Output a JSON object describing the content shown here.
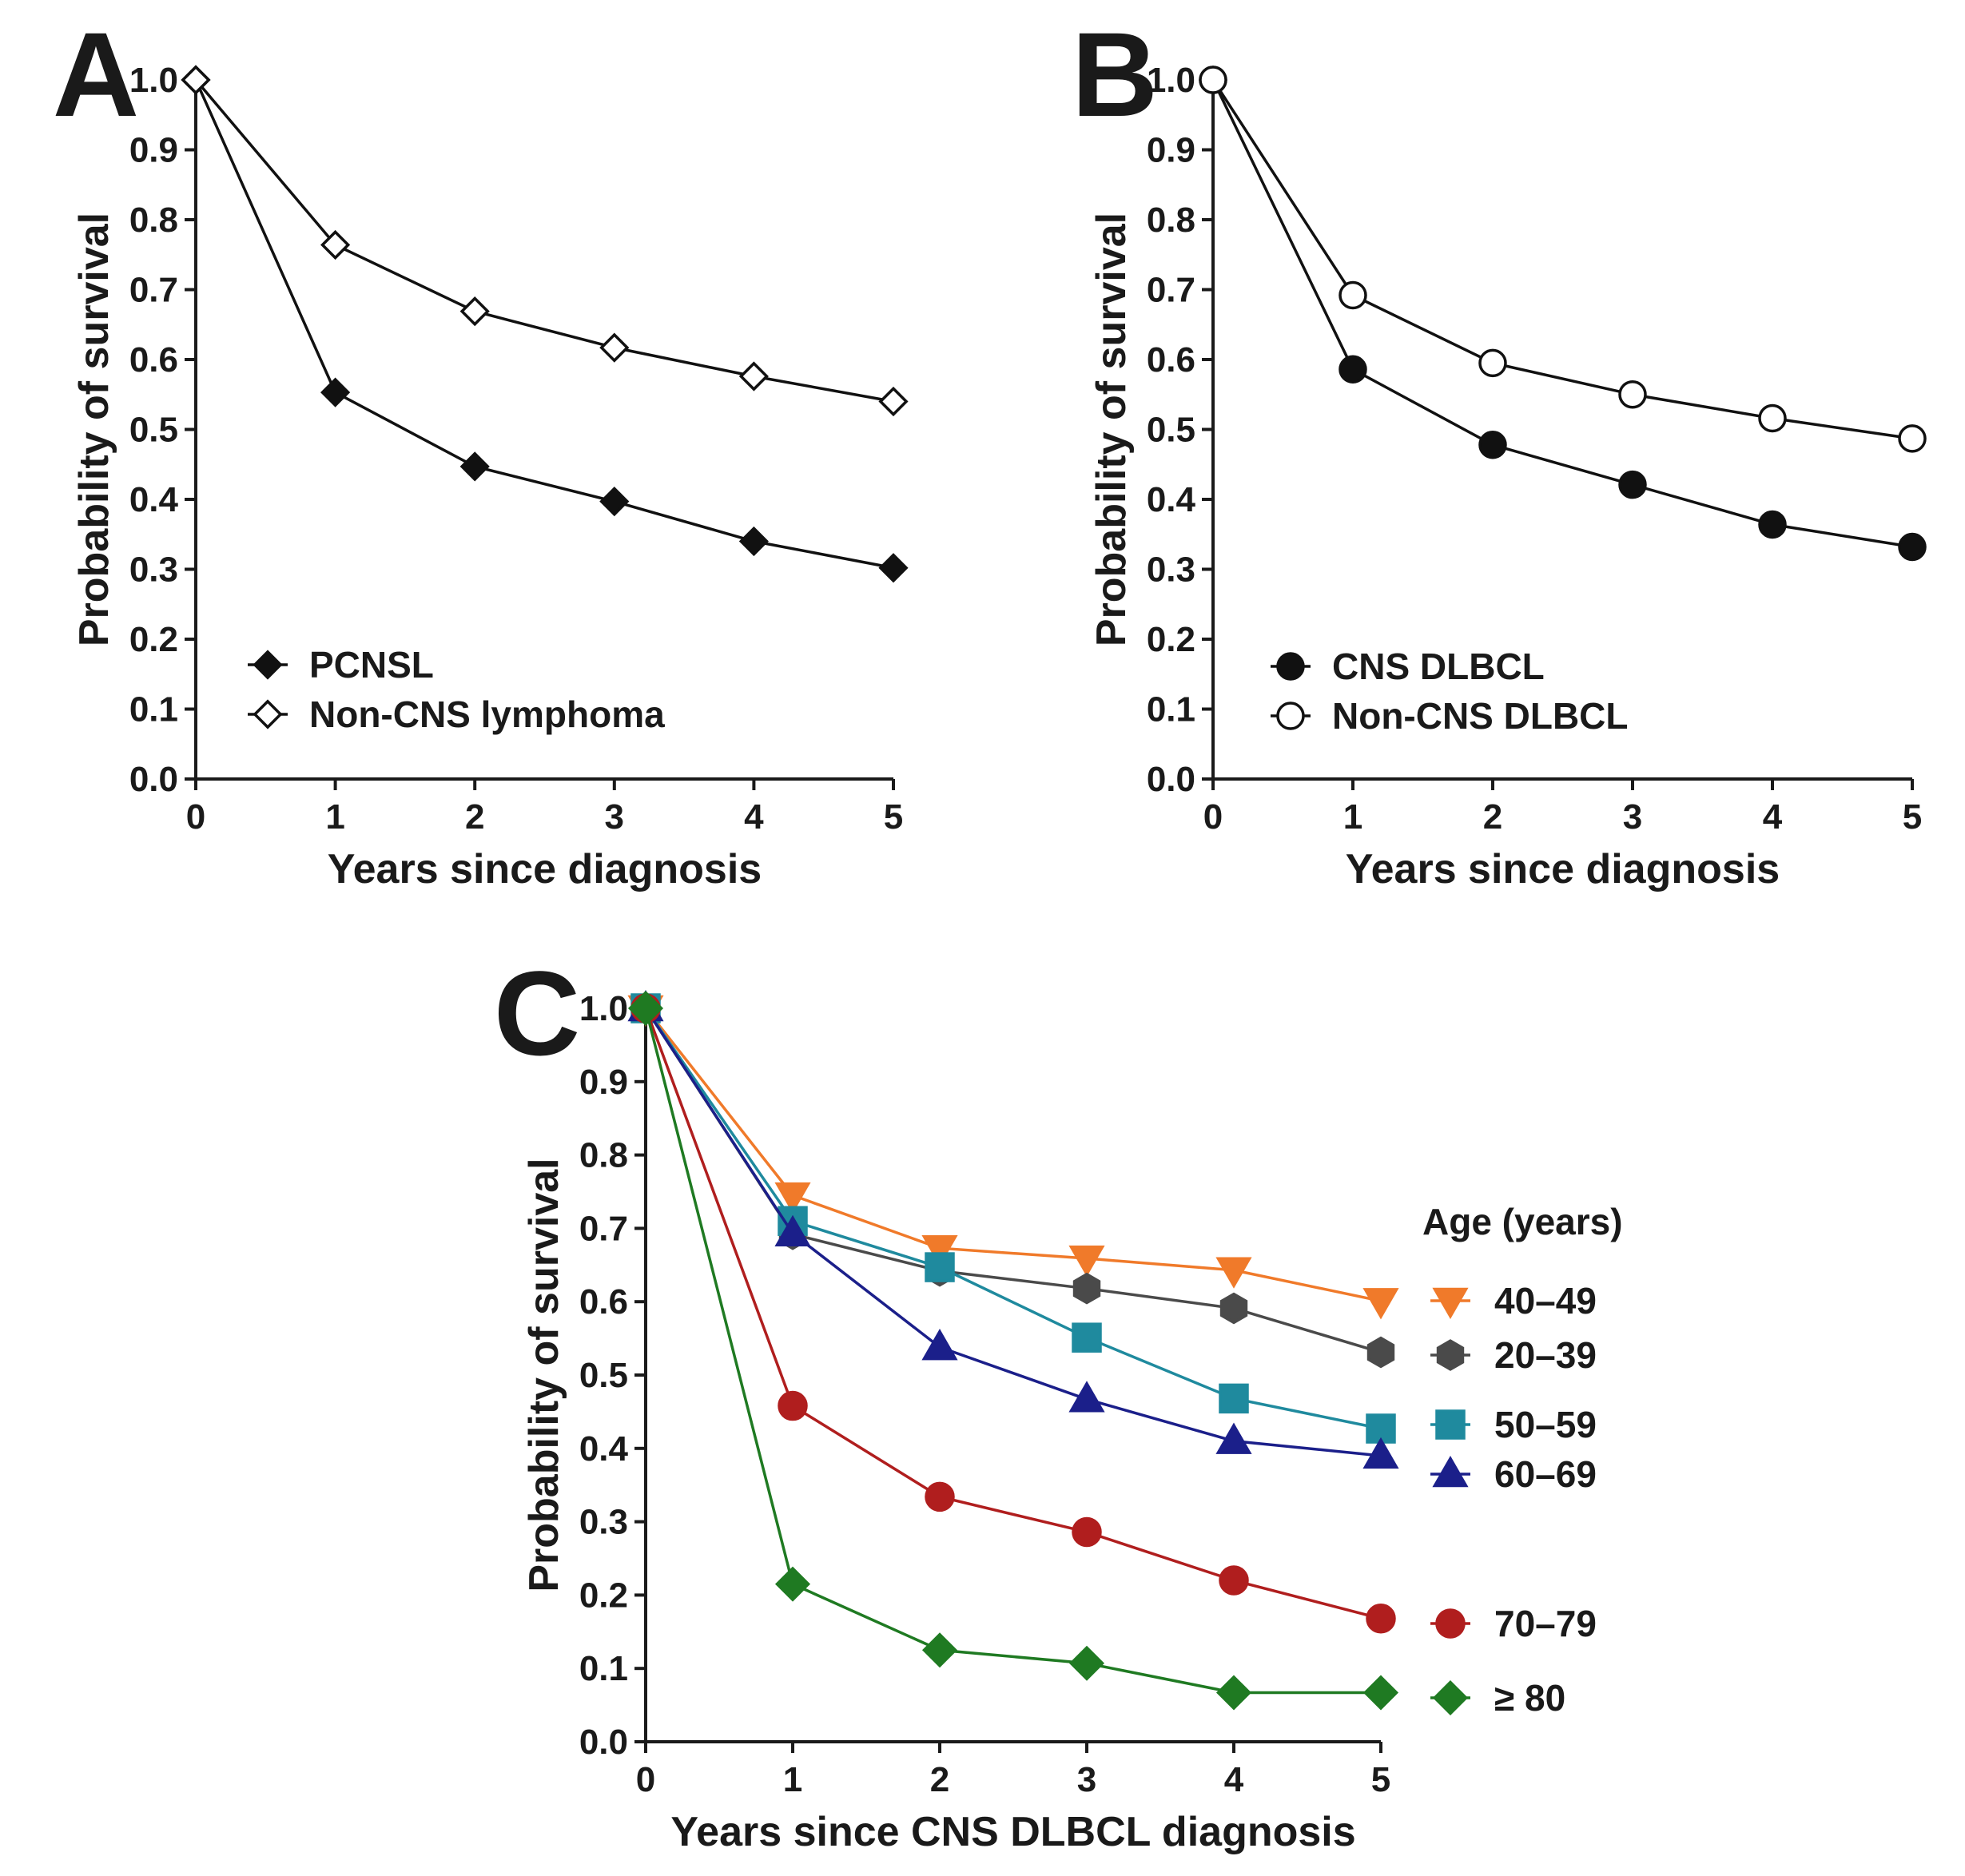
{
  "chart_data": [
    {
      "panel": "A",
      "type": "line",
      "xlabel": "Years since diagnosis",
      "ylabel": "Probability of survival",
      "xlim": [
        0,
        5
      ],
      "ylim": [
        0,
        1
      ],
      "x": [
        0,
        1,
        2,
        3,
        4,
        5
      ],
      "yticks": [
        "0.0",
        "0.1",
        "0.2",
        "0.3",
        "0.4",
        "0.5",
        "0.6",
        "0.7",
        "0.8",
        "0.9",
        "1.0"
      ],
      "xticks": [
        "0",
        "1",
        "2",
        "3",
        "4",
        "5"
      ],
      "legend_position": "bottom-left",
      "series": [
        {
          "name": "PCNSL",
          "marker": "diamond",
          "filled": true,
          "color": "#111111",
          "values": [
            1.0,
            0.553,
            0.447,
            0.397,
            0.34,
            0.302
          ]
        },
        {
          "name": "Non-CNS lymphoma",
          "marker": "diamond",
          "filled": false,
          "color": "#111111",
          "values": [
            1.0,
            0.764,
            0.669,
            0.617,
            0.576,
            0.54
          ]
        }
      ]
    },
    {
      "panel": "B",
      "type": "line",
      "xlabel": "Years since diagnosis",
      "ylabel": "Probability of survival",
      "xlim": [
        0,
        5
      ],
      "ylim": [
        0,
        1
      ],
      "x": [
        0,
        1,
        2,
        3,
        4,
        5
      ],
      "yticks": [
        "0.0",
        "0.1",
        "0.2",
        "0.3",
        "0.4",
        "0.5",
        "0.6",
        "0.7",
        "0.8",
        "0.9",
        "1.0"
      ],
      "xticks": [
        "0",
        "1",
        "2",
        "3",
        "4",
        "5"
      ],
      "legend_position": "bottom-left",
      "series": [
        {
          "name": "CNS DLBCL",
          "marker": "circle",
          "filled": true,
          "color": "#111111",
          "values": [
            1.0,
            0.586,
            0.478,
            0.421,
            0.364,
            0.332
          ]
        },
        {
          "name": "Non-CNS DLBCL",
          "marker": "circle",
          "filled": false,
          "color": "#111111",
          "values": [
            1.0,
            0.692,
            0.595,
            0.55,
            0.516,
            0.487
          ]
        }
      ]
    },
    {
      "panel": "C",
      "type": "line",
      "xlabel": "Years since CNS DLBCL diagnosis",
      "ylabel": "Probability of survival",
      "xlim": [
        0,
        5
      ],
      "ylim": [
        0,
        1
      ],
      "x": [
        0,
        1,
        2,
        3,
        4,
        5
      ],
      "yticks": [
        "0.0",
        "0.1",
        "0.2",
        "0.3",
        "0.4",
        "0.5",
        "0.6",
        "0.7",
        "0.8",
        "0.9",
        "1.0"
      ],
      "xticks": [
        "0",
        "1",
        "2",
        "3",
        "4",
        "5"
      ],
      "legend_title": "Age (years)",
      "legend_position": "right",
      "series": [
        {
          "name": "40–49",
          "marker": "triangle-down",
          "filled": true,
          "color": "#f07a2a",
          "values": [
            1.0,
            0.745,
            0.673,
            0.659,
            0.643,
            0.601
          ]
        },
        {
          "name": "20–39",
          "marker": "hexagon",
          "filled": true,
          "color": "#4a4a4a",
          "values": [
            1.0,
            0.692,
            0.642,
            0.618,
            0.591,
            0.531
          ]
        },
        {
          "name": "50–59",
          "marker": "square",
          "filled": true,
          "color": "#1f8a9e",
          "values": [
            1.0,
            0.71,
            0.647,
            0.551,
            0.468,
            0.427
          ]
        },
        {
          "name": "60–69",
          "marker": "triangle-up",
          "filled": true,
          "color": "#1b1f8a",
          "values": [
            1.0,
            0.693,
            0.538,
            0.467,
            0.41,
            0.39
          ]
        },
        {
          "name": "70–79",
          "marker": "circle",
          "filled": true,
          "color": "#b01e1e",
          "values": [
            1.0,
            0.458,
            0.334,
            0.286,
            0.22,
            0.168
          ]
        },
        {
          "name": "≥ 80",
          "marker": "diamond",
          "filled": true,
          "color": "#1f7a22",
          "values": [
            1.0,
            0.215,
            0.125,
            0.107,
            0.067,
            0.067
          ]
        }
      ]
    }
  ]
}
